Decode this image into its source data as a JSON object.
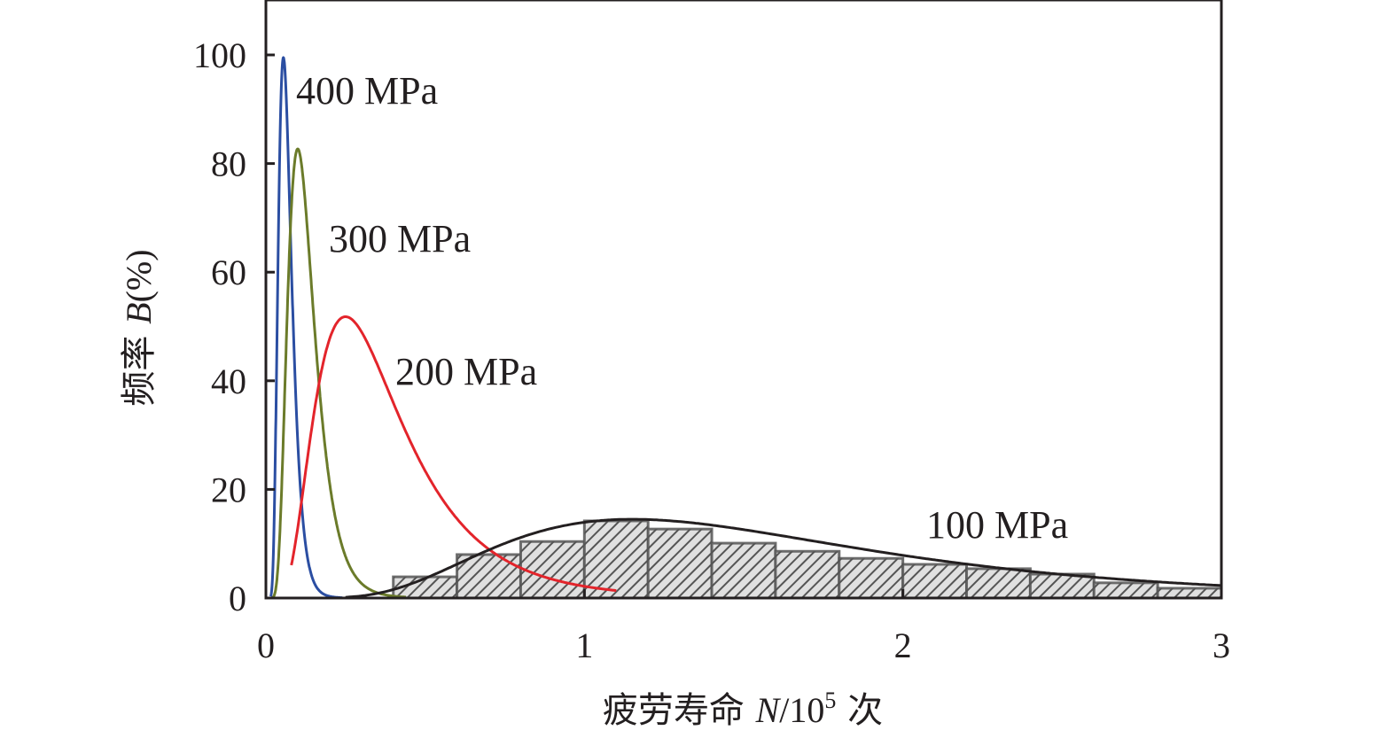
{
  "chart_data": {
    "type": "bar",
    "title": "",
    "xlabel": "疲劳寿命 N/10⁵ 次",
    "xlabel_parts": {
      "cn_prefix": "疲劳寿命 ",
      "var": "N",
      "unit_base": "/10",
      "exp": "5",
      "cn_suffix": " 次"
    },
    "ylabel": "频率 B(%)",
    "ylabel_parts": {
      "cn_prefix": "频率 ",
      "var": "B",
      "unit": "(%)"
    },
    "xlim": [
      0,
      3
    ],
    "ylim": [
      0,
      110
    ],
    "x_ticks": [
      "0",
      "1",
      "2",
      "3"
    ],
    "x_tick_values": [
      0,
      1,
      2,
      3
    ],
    "y_ticks": [
      "0",
      "20",
      "40",
      "60",
      "80",
      "100"
    ],
    "y_tick_values": [
      0,
      20,
      40,
      60,
      80,
      100
    ],
    "grid": false,
    "histogram": {
      "name": "100 MPa",
      "bin_edges": [
        0.4,
        0.6,
        0.8,
        1.0,
        1.2,
        1.4,
        1.6,
        1.8,
        2.0,
        2.2,
        2.4,
        2.6,
        2.8,
        3.0
      ],
      "values": [
        3.9,
        8.0,
        10.4,
        14.2,
        12.7,
        10.1,
        8.6,
        7.3,
        6.2,
        5.4,
        4.4,
        2.8,
        1.8
      ],
      "fill": "#d9d9d9",
      "hatch": "#4d4d4d"
    },
    "series": [
      {
        "name": "400 MPa",
        "label": "400 MPa",
        "color": "#2b4ea2",
        "type": "line",
        "peak_x": 0.055,
        "peak_y": 99.5,
        "x_start": 0.015,
        "x_end": 0.24
      },
      {
        "name": "300 MPa",
        "label": "300 MPa",
        "color": "#6b7b2a",
        "type": "line",
        "peak_x": 0.1,
        "peak_y": 82.7,
        "x_start": 0.02,
        "x_end": 0.44
      },
      {
        "name": "200 MPa",
        "label": "200 MPa",
        "color": "#e3242b",
        "type": "line",
        "peak_x": 0.25,
        "peak_y": 51.8,
        "x_start": 0.08,
        "x_end": 1.1
      },
      {
        "name": "100 MPa",
        "label": "100 MPa",
        "color": "#231f20",
        "type": "line",
        "peak_x": 1.15,
        "peak_y": 14.5,
        "x_start": 0.25,
        "x_end": 3.0
      }
    ],
    "annotations": [
      {
        "text": "400 MPa",
        "x": 0.1,
        "y": 93
      },
      {
        "text": "300 MPa",
        "x": 0.2,
        "y": 66
      },
      {
        "text": "200 MPa",
        "x": 0.4,
        "y": 41
      },
      {
        "text": "100 MPa",
        "x": 2.08,
        "y": 13
      }
    ]
  }
}
